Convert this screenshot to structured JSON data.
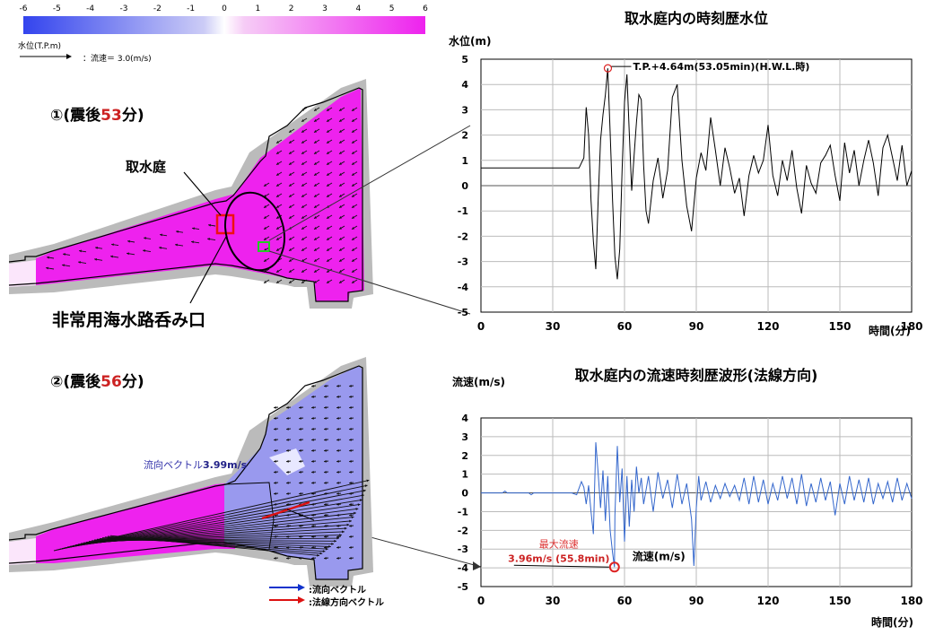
{
  "scale": {
    "ticks": [
      "-6",
      "-5",
      "-4",
      "-3",
      "-2",
      "-1",
      "0",
      "1",
      "2",
      "3",
      "4",
      "5",
      "6"
    ],
    "label": "水位(T.P.m)",
    "vector_ref": "：流速＝ 3.0(m/s)",
    "colors": {
      "negative": "#3344ee",
      "zero": "#ffffff",
      "positive": "#ee22ee"
    }
  },
  "map1": {
    "caption_prefix": "①(震後",
    "caption_num": "53",
    "caption_suffix": "分)",
    "label_intake": "取水庭",
    "label_inlet": "非常用海水路呑み口"
  },
  "map2": {
    "caption_prefix": "②(震後",
    "caption_num": "56",
    "caption_suffix": "分)",
    "vector_label_text": "流向ベクトル",
    "vector_label_value": "3.99m/s",
    "legend": [
      {
        "text": ":流向ベクトル",
        "color": "#1133cc"
      },
      {
        "text": ":法線方向ベクトル",
        "color": "#dd1111"
      }
    ]
  },
  "chart_data": [
    {
      "type": "line",
      "title": "取水庭内の時刻歴水位",
      "ylabel": "水位(m)",
      "xlabel": "時間(分)",
      "xlim": [
        0,
        180
      ],
      "ylim": [
        -5,
        5
      ],
      "x_ticks": [
        "0",
        "30",
        "60",
        "90",
        "120",
        "150",
        "180"
      ],
      "y_ticks": [
        "5",
        "4",
        "3",
        "2",
        "1",
        "0",
        "-1",
        "-2",
        "-3",
        "-4",
        "-5"
      ],
      "grid": true,
      "line_color": "#000000",
      "series": [
        {
          "x": [
            0,
            41,
            43,
            44,
            45,
            46,
            47,
            48,
            49,
            50,
            51,
            52,
            53,
            54,
            55,
            56,
            57,
            58,
            59,
            60,
            61,
            62,
            63,
            64,
            65,
            66,
            67,
            68,
            69,
            70,
            72,
            74,
            76,
            78,
            80,
            82,
            84,
            86,
            88,
            90,
            92,
            94,
            96,
            98,
            100,
            102,
            104,
            106,
            108,
            110,
            112,
            114,
            116,
            118,
            120,
            122,
            124,
            126,
            128,
            130,
            132,
            134,
            136,
            138,
            140,
            142,
            144,
            146,
            148,
            150,
            152,
            154,
            156,
            158,
            160,
            162,
            164,
            166,
            168,
            170,
            172,
            174,
            176,
            178,
            180
          ],
          "y": [
            0.7,
            0.7,
            1.1,
            3.1,
            2.0,
            -0.6,
            -2.2,
            -3.3,
            -0.5,
            1.8,
            2.8,
            3.6,
            4.64,
            2.1,
            -0.6,
            -2.8,
            -3.7,
            -2.5,
            0.6,
            3.3,
            4.4,
            2.1,
            -0.2,
            1.2,
            2.5,
            3.6,
            3.4,
            0.8,
            -1.0,
            -1.5,
            0.2,
            1.1,
            -0.5,
            0.6,
            3.5,
            4.0,
            1.0,
            -0.8,
            -1.8,
            0.3,
            1.3,
            0.6,
            2.7,
            1.4,
            0.0,
            1.5,
            0.7,
            -0.3,
            0.3,
            -1.2,
            0.4,
            1.2,
            0.5,
            1.0,
            2.4,
            0.4,
            -0.4,
            1.0,
            0.2,
            1.4,
            -0.1,
            -1.1,
            0.8,
            0.1,
            -0.3,
            0.9,
            1.2,
            1.6,
            0.4,
            -0.6,
            1.7,
            0.5,
            1.4,
            0.0,
            1.0,
            1.8,
            0.9,
            -0.4,
            1.5,
            2.0,
            1.1,
            0.2,
            1.6,
            0.0,
            0.6
          ]
        }
      ],
      "annotation": {
        "text": "T.P.+4.64m(53.05min)(H.W.L.時)",
        "x": 53.05,
        "y": 4.64
      }
    },
    {
      "type": "line",
      "title": "取水庭内の流速時刻歴波形(法線方向)",
      "ylabel": "流速(m/s)",
      "xlabel": "時間(分)",
      "xlim": [
        0,
        180
      ],
      "ylim": [
        -5,
        4
      ],
      "x_ticks": [
        "0",
        "30",
        "60",
        "90",
        "120",
        "150",
        "180"
      ],
      "y_ticks": [
        "4",
        "3",
        "2",
        "1",
        "0",
        "-1",
        "-2",
        "-3",
        "-4",
        "-5"
      ],
      "grid": true,
      "line_color": "#3366cc",
      "inline_label": "流速(m/s)",
      "series": [
        {
          "x": [
            0,
            9,
            10,
            11,
            20,
            21,
            22,
            38,
            40,
            42,
            43,
            44,
            45,
            46,
            47,
            48,
            49,
            50,
            51,
            52,
            53,
            54,
            55,
            55.8,
            56,
            57,
            58,
            59,
            60,
            61,
            62,
            63,
            64,
            65,
            66,
            67,
            68,
            70,
            72,
            74,
            76,
            78,
            80,
            82,
            84,
            86,
            88,
            89,
            90,
            91,
            92,
            94,
            96,
            98,
            100,
            102,
            104,
            106,
            108,
            110,
            112,
            114,
            116,
            118,
            120,
            122,
            124,
            126,
            128,
            130,
            132,
            134,
            136,
            138,
            140,
            142,
            144,
            146,
            148,
            150,
            152,
            154,
            156,
            158,
            160,
            162,
            164,
            166,
            168,
            170,
            172,
            174,
            176,
            178,
            180
          ],
          "y": [
            0,
            0,
            0.1,
            0,
            0,
            -0.1,
            0,
            0,
            -0.1,
            0.6,
            0.3,
            -0.6,
            0.4,
            -1.0,
            -2.2,
            2.7,
            1.0,
            -0.8,
            1.2,
            -1.5,
            0.9,
            -2.0,
            -3.2,
            -3.96,
            -1.2,
            2.5,
            -0.5,
            1.3,
            -2.6,
            0.9,
            -1.8,
            0.7,
            -1.0,
            1.4,
            0.0,
            0.8,
            -0.6,
            0.9,
            -1.0,
            1.1,
            -0.3,
            0.7,
            -0.8,
            1.0,
            -0.6,
            0.5,
            -1.4,
            -3.9,
            -0.8,
            0.9,
            -0.4,
            0.6,
            -0.5,
            0.4,
            -0.3,
            0.5,
            -0.2,
            0.4,
            -0.4,
            0.8,
            -0.6,
            0.9,
            -0.5,
            0.7,
            -0.6,
            0.5,
            -0.4,
            0.9,
            -0.3,
            0.8,
            -0.6,
            1.0,
            -0.7,
            0.5,
            -0.5,
            0.8,
            -0.4,
            0.6,
            -1.2,
            0.5,
            -0.6,
            0.9,
            -0.4,
            0.7,
            -0.5,
            0.8,
            -0.6,
            0.5,
            -0.3,
            0.6,
            -0.5,
            0.8,
            -0.4,
            0.5,
            -0.3
          ]
        }
      ],
      "annotation": {
        "title": "最大流速",
        "text": "3.96m/s (55.8min)",
        "x": 55.8,
        "y": -3.96
      }
    }
  ]
}
